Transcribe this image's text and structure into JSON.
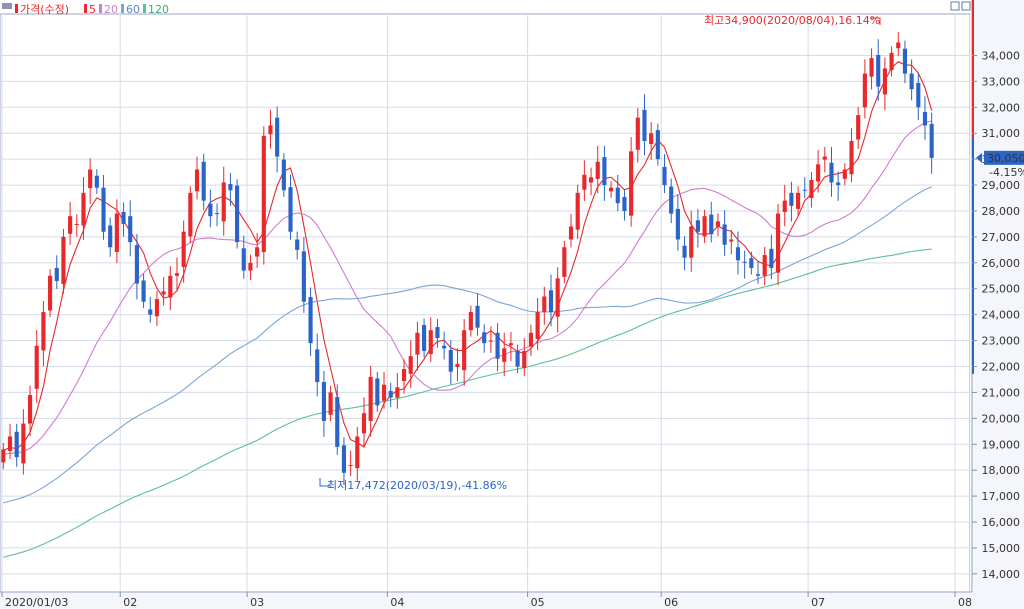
{
  "colors": {
    "up": "#e8282b",
    "down": "#2a64c8",
    "ma5": "#e8282b",
    "ma20": "#d07cd0",
    "ma60": "#7aa6d6",
    "ma120": "#5cbf9a",
    "grid": "#d6dbe8",
    "axis": "#7f8fb0",
    "current": "#2a64c8"
  },
  "legend": {
    "price": "가격(수정)",
    "ma5": "5",
    "ma20": "20",
    "ma60": "60",
    "ma120": "120"
  },
  "annotations": {
    "high": "최고34,900(2020/08/04),16.14%",
    "low": "최저17,472(2020/03/19),-41.86%"
  },
  "current_price": {
    "value_label": "30,050",
    "change_label": "-4.15%",
    "value": 30050
  },
  "chart_data": {
    "type": "candlestick",
    "x_tick_labels": [
      "2020/01/03",
      "02",
      "03",
      "04",
      "05",
      "06",
      "07",
      "08"
    ],
    "y_ticks": [
      14000,
      15000,
      16000,
      17000,
      18000,
      19000,
      20000,
      21000,
      22000,
      23000,
      24000,
      25000,
      26000,
      27000,
      28000,
      29000,
      30000,
      31000,
      32000,
      33000,
      34000
    ],
    "y_tick_labels": [
      "14,000",
      "15,000",
      "16,000",
      "17,000",
      "18,000",
      "19,000",
      "20,000",
      "21,000",
      "22,000",
      "23,000",
      "24,000",
      "25,000",
      "26,000",
      "27,000",
      "28,000",
      "29,000",
      "30,000",
      "31,000",
      "32,000",
      "33,000",
      "34,000"
    ],
    "ylim": [
      13300,
      35600
    ],
    "grid": true,
    "legend_position": "top-left",
    "high": 34900,
    "low": 17472,
    "closes": [
      18800,
      19300,
      18500,
      19800,
      20900,
      22800,
      24100,
      25500,
      25300,
      27000,
      27800,
      27500,
      28700,
      29600,
      28900,
      27200,
      26600,
      27900,
      27500,
      26800,
      25200,
      24500,
      24000,
      24600,
      24900,
      25500,
      25600,
      27200,
      28700,
      29600,
      28400,
      27800,
      27900,
      29100,
      28800,
      26800,
      25700,
      26000,
      26600,
      30900,
      31300,
      30100,
      28800,
      27200,
      26500,
      24500,
      22900,
      21400,
      19900,
      21000,
      18900,
      17900,
      18200,
      19300,
      20200,
      21600,
      20500,
      21300,
      20800,
      21200,
      21900,
      22400,
      23300,
      22600,
      23400,
      23100,
      22700,
      21800,
      22100,
      23400,
      24100,
      23500,
      22900,
      23000,
      22300,
      22700,
      22900,
      22000,
      22600,
      23300,
      24100,
      24700,
      24100,
      25400,
      26600,
      27400,
      28700,
      29400,
      29300,
      29900,
      29000,
      28900,
      28300,
      28000,
      30300,
      31600,
      30700,
      31000,
      30000,
      29000,
      27900,
      26900,
      26200,
      27400,
      27200,
      27800,
      27100,
      27600,
      26700,
      26900,
      26100,
      26000,
      25800,
      25500,
      26300,
      25800,
      27900,
      28400,
      28200,
      28700,
      28800,
      29200,
      29800,
      30100,
      29100,
      29000,
      29600,
      30700,
      31700,
      33300,
      33900,
      32800,
      33500,
      34100,
      34500,
      33300,
      32700,
      32000,
      31300,
      30050
    ],
    "ma5_source": "computed",
    "ma_periods": [
      5,
      20,
      60,
      120
    ]
  }
}
